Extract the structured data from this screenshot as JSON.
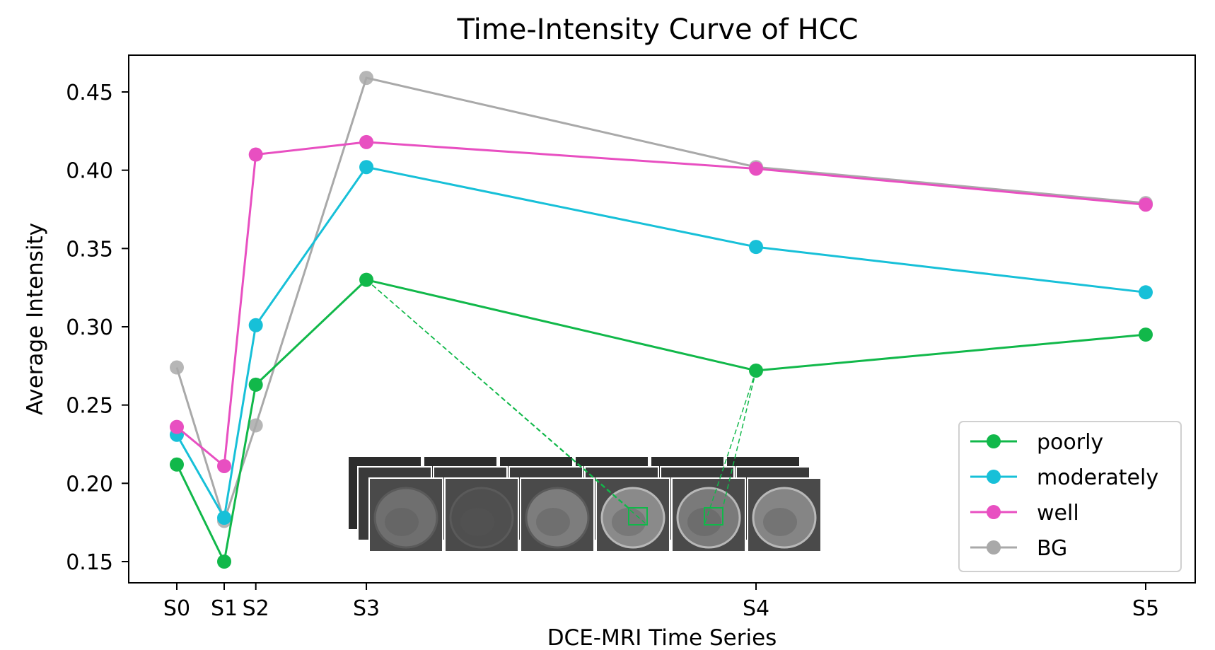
{
  "chart_data": {
    "type": "line",
    "title": "Time-Intensity Curve of HCC",
    "xlabel": "DCE-MRI Time Series",
    "ylabel": "Average Intensity",
    "ylim": [
      0.14,
      0.47
    ],
    "yticks": [
      0.15,
      0.2,
      0.25,
      0.3,
      0.35,
      0.4,
      0.45
    ],
    "ytick_labels": [
      "0.15",
      "0.20",
      "0.25",
      "0.30",
      "0.35",
      "0.40",
      "0.45"
    ],
    "x_positions": [
      0,
      0.45,
      0.75,
      1.8,
      5.5,
      9.2
    ],
    "x_tick_labels": [
      "S0",
      "S1",
      "S2",
      "S3",
      "S4",
      "S5"
    ],
    "grid": false,
    "legend_position": "lower-right",
    "series": [
      {
        "name": "BG",
        "color": "#a9a9a9",
        "values": [
          0.274,
          0.176,
          0.237,
          0.459,
          0.402,
          0.379
        ]
      },
      {
        "name": "moderately",
        "color": "#17c0d8",
        "values": [
          0.231,
          0.178,
          0.301,
          0.402,
          0.351,
          0.322
        ]
      },
      {
        "name": "well",
        "color": "#e84fc1",
        "values": [
          0.236,
          0.211,
          0.41,
          0.418,
          0.401,
          0.378
        ]
      },
      {
        "name": "poorly",
        "color": "#11b84a",
        "values": [
          0.212,
          0.15,
          0.263,
          0.33,
          0.272,
          0.295
        ]
      }
    ],
    "legend_order": [
      "poorly",
      "moderately",
      "well",
      "BG"
    ]
  }
}
